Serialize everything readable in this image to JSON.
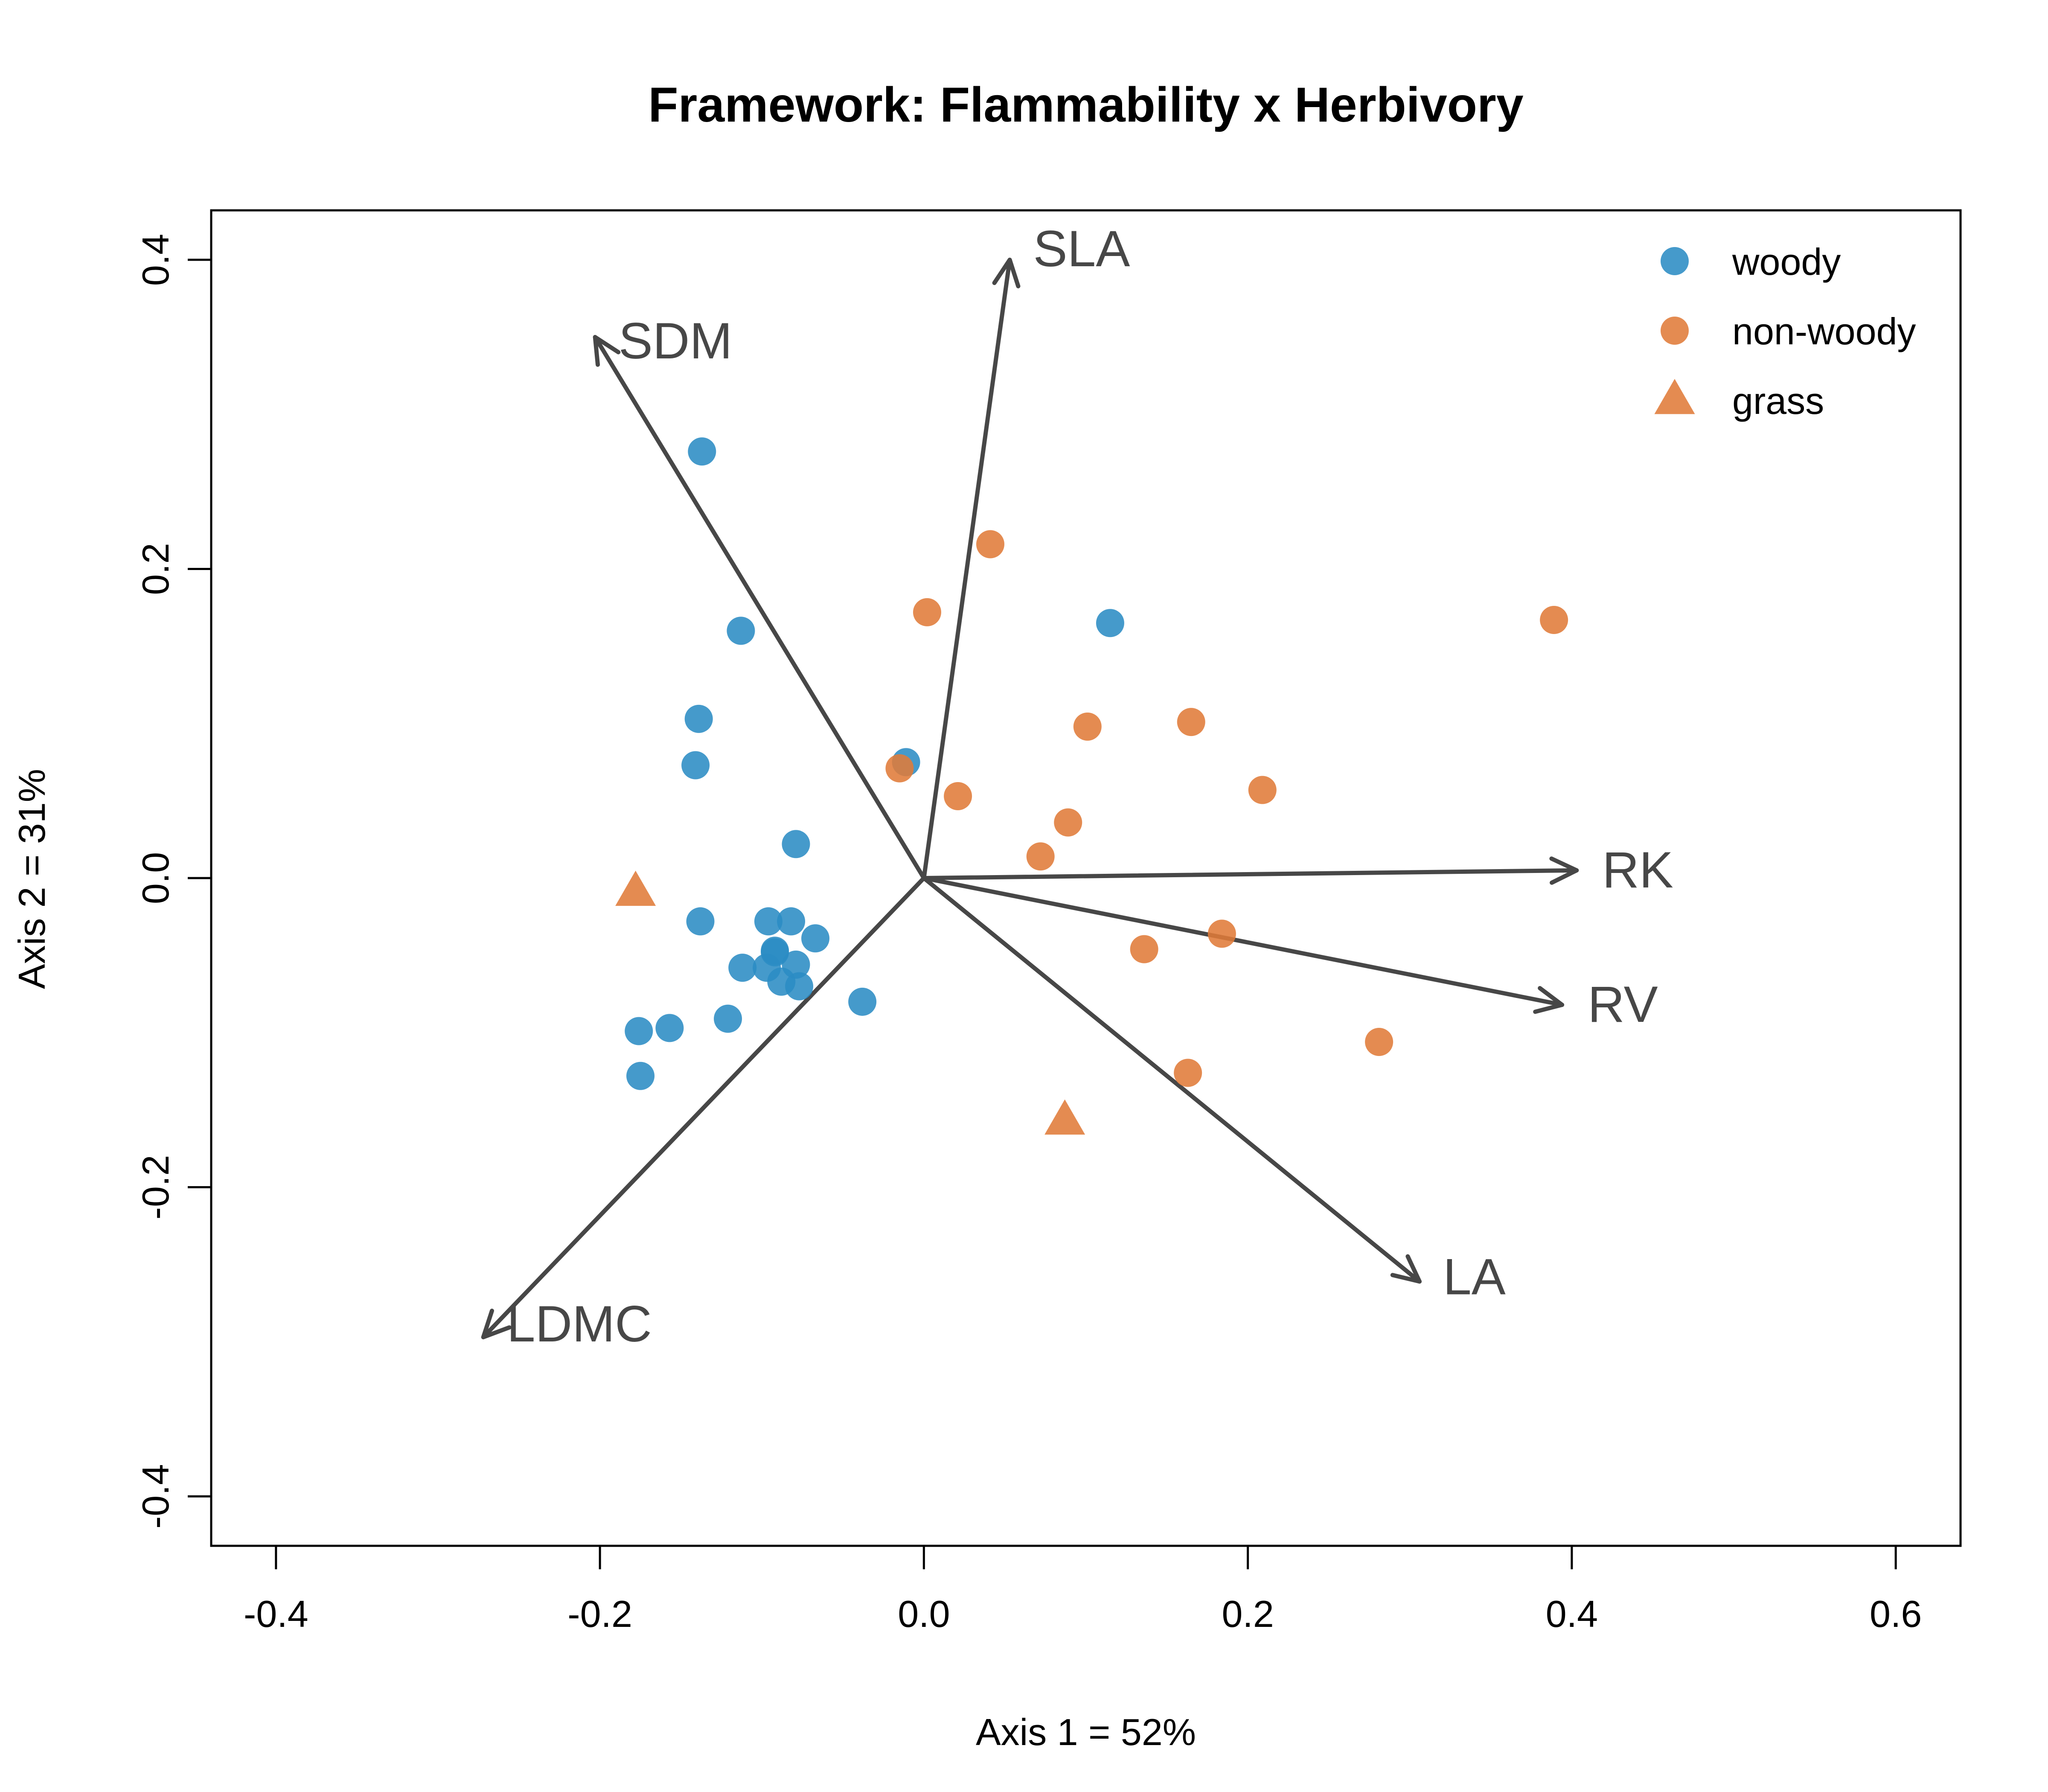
{
  "chart_data": {
    "type": "scatter",
    "title": "Framework: Flammability x Herbivory",
    "xlabel": "Axis 1 = 52%",
    "ylabel": "Axis 2 = 31%",
    "xlim": [
      -0.44,
      0.64
    ],
    "ylim": [
      -0.432,
      0.432
    ],
    "x_ticks": [
      -0.4,
      -0.2,
      0.0,
      0.2,
      0.4,
      0.6
    ],
    "x_tick_labels": [
      "-0.4",
      "-0.2",
      "0.0",
      "0.2",
      "0.4",
      "0.6"
    ],
    "y_ticks": [
      -0.4,
      -0.2,
      0.0,
      0.2,
      0.4
    ],
    "y_tick_labels": [
      "-0.4",
      "-0.2",
      "0.0",
      "0.2",
      "0.4"
    ],
    "grid": false,
    "legend_position": "top-right",
    "colors": {
      "woody": "#2B8CC4",
      "non-woody": "#E07B39",
      "vector": "#474747"
    },
    "series": [
      {
        "name": "woody",
        "marker": "circle",
        "color": "#2B8CC4",
        "points": [
          [
            -0.137,
            0.276
          ],
          [
            -0.113,
            0.16
          ],
          [
            -0.139,
            0.103
          ],
          [
            -0.141,
            0.073
          ],
          [
            0.115,
            0.165
          ],
          [
            -0.011,
            0.075
          ],
          [
            -0.079,
            0.022
          ],
          [
            -0.138,
            -0.028
          ],
          [
            -0.096,
            -0.028
          ],
          [
            -0.082,
            -0.028
          ],
          [
            -0.067,
            -0.039
          ],
          [
            -0.092,
            -0.047
          ],
          [
            -0.092,
            -0.048
          ],
          [
            -0.097,
            -0.058
          ],
          [
            -0.112,
            -0.058
          ],
          [
            -0.079,
            -0.056
          ],
          [
            -0.088,
            -0.067
          ],
          [
            -0.077,
            -0.07
          ],
          [
            -0.038,
            -0.08
          ],
          [
            -0.121,
            -0.091
          ],
          [
            -0.157,
            -0.097
          ],
          [
            -0.176,
            -0.099
          ],
          [
            -0.175,
            -0.128
          ]
        ]
      },
      {
        "name": "non-woody",
        "marker": "circle",
        "color": "#E07B39",
        "points": [
          [
            0.041,
            0.216
          ],
          [
            0.002,
            0.172
          ],
          [
            0.389,
            0.167
          ],
          [
            0.101,
            0.098
          ],
          [
            0.165,
            0.101
          ],
          [
            -0.015,
            0.071
          ],
          [
            0.021,
            0.053
          ],
          [
            0.209,
            0.057
          ],
          [
            0.089,
            0.036
          ],
          [
            0.072,
            0.014
          ],
          [
            0.136,
            -0.046
          ],
          [
            0.184,
            -0.036
          ],
          [
            0.163,
            -0.126
          ],
          [
            0.281,
            -0.106
          ]
        ]
      },
      {
        "name": "grass",
        "marker": "triangle",
        "color": "#E07B39",
        "points": [
          [
            -0.178,
            -0.009
          ],
          [
            0.087,
            -0.157
          ]
        ]
      }
    ],
    "vectors": [
      {
        "label": "SLA",
        "x": 0.053,
        "y": 0.4
      },
      {
        "label": "SDM",
        "x": -0.203,
        "y": 0.35
      },
      {
        "label": "RK",
        "x": 0.403,
        "y": 0.005
      },
      {
        "label": "RV",
        "x": 0.394,
        "y": -0.082
      },
      {
        "label": "LA",
        "x": 0.306,
        "y": -0.261
      },
      {
        "label": "LDMC",
        "x": -0.272,
        "y": -0.297
      }
    ]
  }
}
